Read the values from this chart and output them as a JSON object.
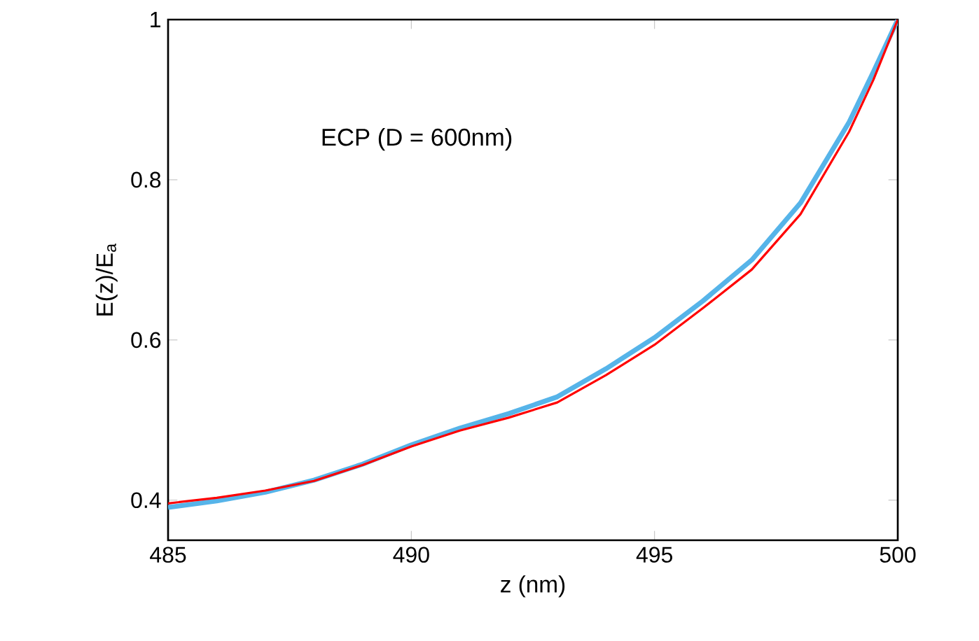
{
  "chart_data": {
    "type": "line",
    "xlabel": "z (nm)",
    "ylabel": "E(z)/E$_{a}$",
    "annotations": [
      "ECP (D = 600nm)"
    ],
    "xlim": [
      485,
      500
    ],
    "xticks": [
      485,
      490,
      495,
      500
    ],
    "ylim": [
      0.35,
      1
    ],
    "yticks": [
      {
        "value": 0.4,
        "label": "0.4"
      },
      {
        "value": 0.6,
        "label": "0.6"
      },
      {
        "value": 0.8,
        "label": "0.8"
      },
      1
    ],
    "series": [
      {
        "color": "#56b4e9",
        "x": [
          485,
          486,
          487,
          488,
          489,
          490,
          491,
          492,
          493,
          494,
          495,
          496,
          497,
          498,
          499,
          499.5,
          500
        ],
        "values": [
          0.391,
          0.399,
          0.41,
          0.425,
          0.445,
          0.469,
          0.49,
          0.508,
          0.529,
          0.564,
          0.603,
          0.649,
          0.7,
          0.771,
          0.872,
          0.935,
          1.0
        ]
      },
      {
        "color": "#ff0000",
        "x": [
          485,
          486,
          487,
          488,
          489,
          490,
          491,
          492,
          493,
          494,
          495,
          496,
          497,
          498,
          499,
          499.5,
          500
        ],
        "values": [
          0.396,
          0.403,
          0.412,
          0.424,
          0.444,
          0.467,
          0.487,
          0.503,
          0.522,
          0.556,
          0.594,
          0.64,
          0.688,
          0.757,
          0.86,
          0.925,
          1.0
        ]
      }
    ]
  }
}
